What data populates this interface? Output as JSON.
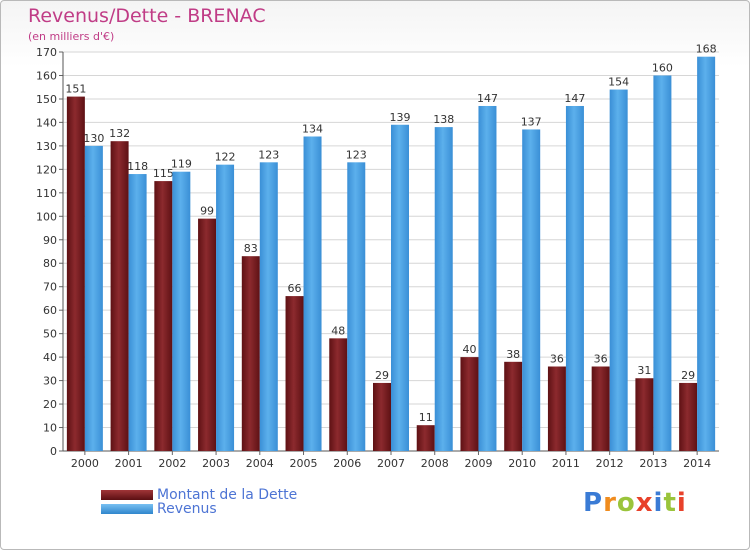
{
  "title": "Revenus/Dette - BRENAC",
  "subtitle": "(en milliers d'€)",
  "logo": {
    "letters": [
      "P",
      "r",
      "o",
      "x",
      "i",
      "t",
      "i"
    ],
    "colors": [
      "#3a7bd5",
      "#f08c1e",
      "#9ac43b",
      "#e8412a",
      "#3a7bd5",
      "#9ac43b",
      "#e8412a"
    ]
  },
  "colors": {
    "dette": "#7a1f22",
    "revenus": "#4aa1e3",
    "title": "#c03c86",
    "legend_text": "#4d74d4"
  },
  "chart_data": {
    "type": "bar",
    "title": "Revenus/Dette - BRENAC",
    "subtitle": "(en milliers d'€)",
    "categories": [
      "2000",
      "2001",
      "2002",
      "2003",
      "2004",
      "2005",
      "2006",
      "2007",
      "2008",
      "2009",
      "2010",
      "2011",
      "2012",
      "2013",
      "2014"
    ],
    "series": [
      {
        "name": "Montant de la Dette",
        "values": [
          151,
          132,
          115,
          99,
          83,
          66,
          48,
          29,
          11,
          40,
          38,
          36,
          36,
          31,
          29
        ]
      },
      {
        "name": "Revenus",
        "values": [
          130,
          118,
          119,
          122,
          123,
          134,
          123,
          139,
          138,
          147,
          137,
          147,
          154,
          160,
          168
        ]
      }
    ],
    "ylim": [
      0,
      170
    ],
    "yticks": [
      0,
      10,
      20,
      30,
      40,
      50,
      60,
      70,
      80,
      90,
      100,
      110,
      120,
      130,
      140,
      150,
      160,
      170
    ],
    "grid": true,
    "legend": "bottom-left"
  }
}
